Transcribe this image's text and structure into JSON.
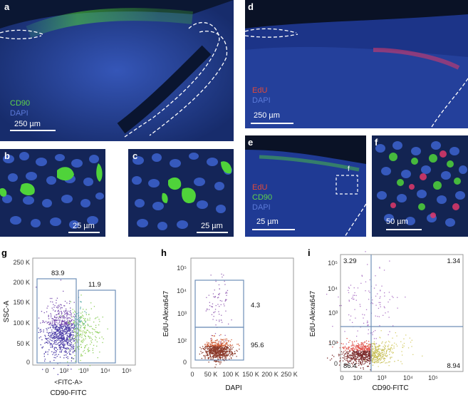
{
  "panels": {
    "a": {
      "label": "a",
      "legend": [
        "CD90",
        "DAPI"
      ],
      "scale": "250 µm"
    },
    "b": {
      "label": "b",
      "scale": "25 µm"
    },
    "c": {
      "label": "c",
      "scale": "25 µm"
    },
    "d": {
      "label": "d",
      "legend": [
        "EdU",
        "DAPI"
      ],
      "scale": "250 µm"
    },
    "e": {
      "label": "e",
      "legend": [
        "EdU",
        "CD90",
        "DAPI"
      ],
      "scale": "25 µm",
      "inset": "f"
    },
    "f": {
      "label": "f",
      "scale": "50 µm"
    },
    "g": {
      "label": "g",
      "ylabel": "SSC-A",
      "xlabel1": "<FITC-A>",
      "xlabel2": "CD90-FITC",
      "yticks": [
        "250 K",
        "200 K",
        "150 K",
        "100 K",
        "50 K",
        "0"
      ],
      "xticks": [
        "0",
        "10²",
        "10³",
        "10⁴",
        "10⁵"
      ],
      "gate_left": "83.9",
      "gate_right": "11.9"
    },
    "h": {
      "label": "h",
      "ylabel": "EdU-Alexa647",
      "xlabel": "DAPI",
      "yticks": [
        "10⁵",
        "10⁴",
        "10³",
        "10²",
        "0"
      ],
      "xticks": [
        "0",
        "50 K",
        "100 K",
        "150 K",
        "200 K",
        "250 K"
      ],
      "gate_top": "4.3",
      "gate_bottom": "95.6"
    },
    "i": {
      "label": "i",
      "ylabel": "EdU-Alexa647",
      "xlabel": "CD90-FITC",
      "yticks": [
        "10⁵",
        "10⁴",
        "10³",
        "10²",
        "0"
      ],
      "xticks": [
        "0",
        "10²",
        "10³",
        "10⁴",
        "10⁵"
      ],
      "q_ul": "3.29",
      "q_ur": "1.34",
      "q_ll": "86.4",
      "q_lr": "8.94"
    }
  },
  "colors": {
    "dapi": "#3f5fc8",
    "cd90": "#4fd33a",
    "edu": "#e0386a",
    "background": "#0b1733",
    "gate": "#6f8fb8"
  }
}
